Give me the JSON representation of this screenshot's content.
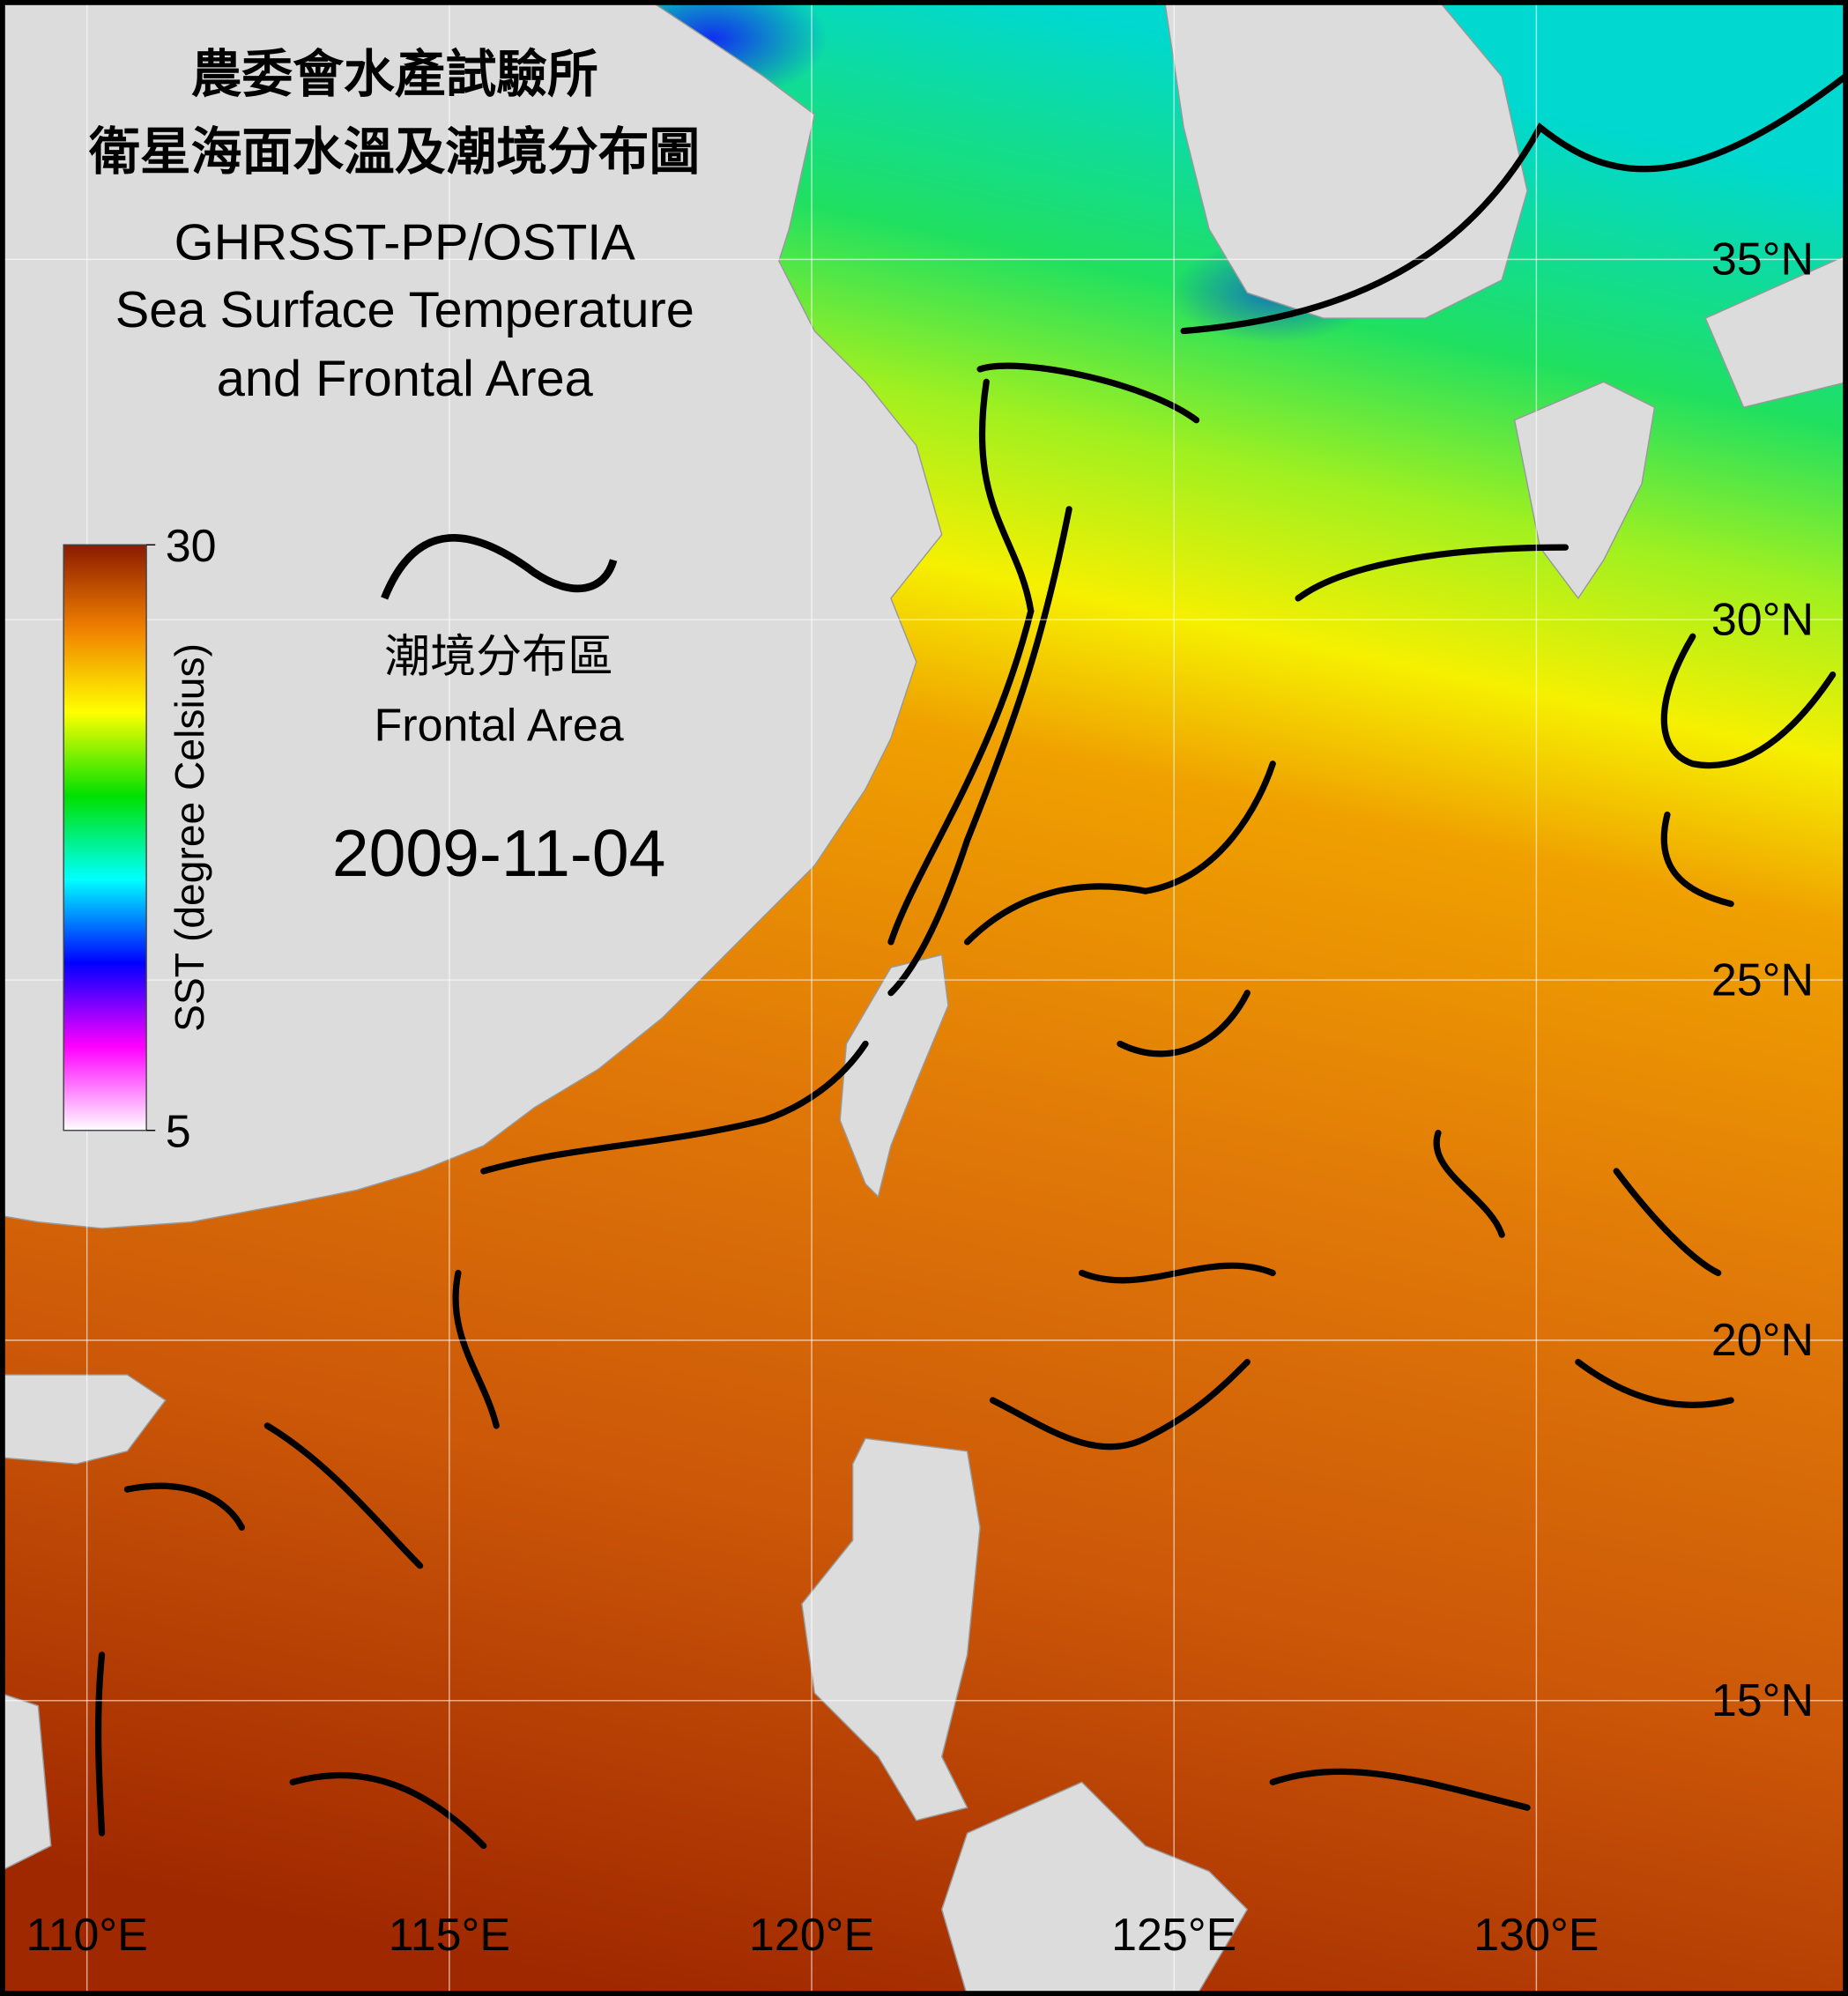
{
  "map": {
    "title_lines": [
      "農委會水產試驗所",
      "衛星海面水溫及潮境分布圖",
      "GHRSST-PP/OSTIA",
      "Sea Surface Temperature",
      "and Frontal Area"
    ],
    "legend": {
      "label_zh": "潮境分布區",
      "label_en": "Frontal Area"
    },
    "date": "2009-11-04",
    "lonlim": [
      108.8,
      134.3
    ],
    "latlim": [
      10.9,
      38.6
    ],
    "lon_ticks": [
      {
        "value": 110,
        "label": "110°E"
      },
      {
        "value": 115,
        "label": "115°E"
      },
      {
        "value": 120,
        "label": "120°E"
      },
      {
        "value": 125,
        "label": "125°E"
      },
      {
        "value": 130,
        "label": "130°E"
      }
    ],
    "lat_ticks": [
      {
        "value": 35,
        "label": "35°N"
      },
      {
        "value": 30,
        "label": "30°N"
      },
      {
        "value": 25,
        "label": "25°N"
      },
      {
        "value": 20,
        "label": "20°N"
      },
      {
        "value": 15,
        "label": "15°N"
      }
    ],
    "colorbar": {
      "label": "SST (degree Celsius)",
      "range": [
        5,
        30
      ],
      "ticks": [
        5,
        30
      ],
      "colors": [
        "#ffffff",
        "#ff00ff",
        "#0000ff",
        "#00ffff",
        "#00e000",
        "#ffff00",
        "#f08000",
        "#8b1a00"
      ]
    }
  }
}
